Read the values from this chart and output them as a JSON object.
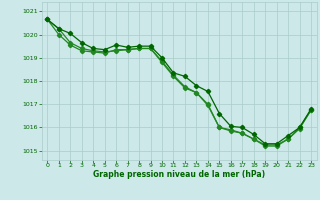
{
  "title": "Graphe pression niveau de la mer (hPa)",
  "bg_color": "#cce8e8",
  "grid_color": "#aacccc",
  "line_color_dark": "#006600",
  "line_color_light": "#228822",
  "xlim": [
    -0.5,
    23.5
  ],
  "ylim": [
    1014.6,
    1021.4
  ],
  "yticks": [
    1015,
    1016,
    1017,
    1018,
    1019,
    1020,
    1021
  ],
  "xticks": [
    0,
    1,
    2,
    3,
    4,
    5,
    6,
    7,
    8,
    9,
    10,
    11,
    12,
    13,
    14,
    15,
    16,
    17,
    18,
    19,
    20,
    21,
    22,
    23
  ],
  "series1_x": [
    0,
    1,
    2,
    3,
    4,
    5,
    6,
    7,
    8,
    9,
    10,
    11,
    12,
    13,
    14,
    15,
    16,
    17,
    18,
    19,
    20,
    21,
    22,
    23
  ],
  "series1_y": [
    1020.65,
    1020.25,
    1020.05,
    1019.65,
    1019.4,
    1019.35,
    1019.55,
    1019.45,
    1019.5,
    1019.5,
    1019.0,
    1018.35,
    1018.2,
    1017.8,
    1017.55,
    1016.6,
    1016.05,
    1016.0,
    1015.7,
    1015.3,
    1015.3,
    1015.65,
    1016.0,
    1016.8
  ],
  "series2_x": [
    0,
    1,
    2,
    3,
    4,
    5,
    6,
    7,
    8,
    9,
    10,
    11,
    12,
    13,
    14,
    15,
    16,
    17,
    18,
    19,
    20,
    21,
    22,
    23
  ],
  "series2_y": [
    1020.65,
    1020.25,
    1019.65,
    1019.4,
    1019.3,
    1019.25,
    1019.3,
    1019.35,
    1019.4,
    1019.4,
    1018.8,
    1018.2,
    1017.7,
    1017.5,
    1016.95,
    1016.0,
    1015.85,
    1015.75,
    1015.5,
    1015.2,
    1015.2,
    1015.5,
    1015.95,
    1016.75
  ],
  "series3_x": [
    0,
    1,
    2,
    3,
    4,
    5,
    6,
    7,
    8,
    9,
    10,
    11,
    12,
    13,
    14,
    15,
    16,
    17,
    18,
    19,
    20,
    21,
    22,
    23
  ],
  "series3_y": [
    1020.65,
    1020.0,
    1019.55,
    1019.3,
    1019.25,
    1019.2,
    1019.35,
    1019.35,
    1019.4,
    1019.4,
    1018.85,
    1018.25,
    1017.75,
    1017.5,
    1017.0,
    1016.0,
    1015.9,
    1015.75,
    1015.5,
    1015.25,
    1015.25,
    1015.5,
    1016.0,
    1016.75
  ]
}
